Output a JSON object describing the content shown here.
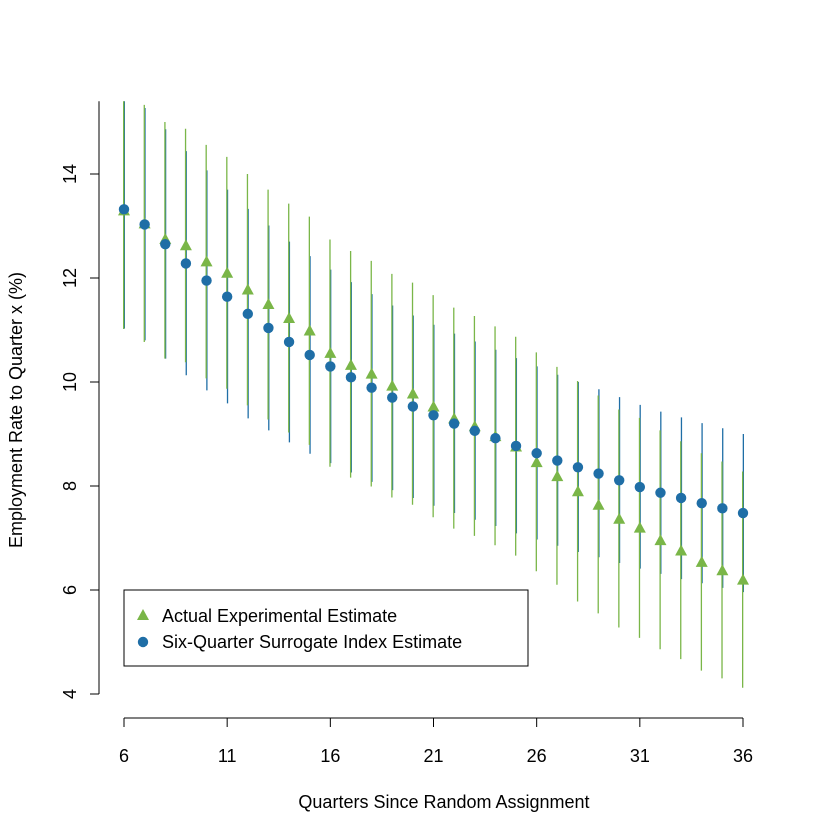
{
  "chart_data": {
    "type": "scatter",
    "title": "",
    "xlabel": "Quarters Since Random Assignment",
    "ylabel": "Employment Rate to Quarter x (%)",
    "xlim": [
      6,
      36
    ],
    "ylim": [
      4,
      15.4
    ],
    "x_ticks": [
      6,
      11,
      16,
      21,
      26,
      31,
      36
    ],
    "y_ticks": [
      4,
      6,
      8,
      10,
      12,
      14
    ],
    "grid": false,
    "legend_position": "bottom-left",
    "x": [
      6,
      7,
      8,
      9,
      10,
      11,
      12,
      13,
      14,
      15,
      16,
      17,
      18,
      19,
      20,
      21,
      22,
      23,
      24,
      25,
      26,
      27,
      28,
      29,
      30,
      31,
      32,
      33,
      34,
      35,
      36
    ],
    "series": [
      {
        "name": "Actual Experimental Estimate",
        "marker": "triangle",
        "color": "#7ab648",
        "values": [
          13.3,
          13.05,
          12.75,
          12.63,
          12.32,
          12.1,
          11.78,
          11.5,
          11.23,
          10.99,
          10.56,
          10.33,
          10.16,
          9.93,
          9.78,
          9.53,
          9.3,
          9.15,
          8.96,
          8.76,
          8.46,
          8.19,
          7.9,
          7.64,
          7.37,
          7.2,
          6.96,
          6.76,
          6.54,
          6.38,
          6.2
        ],
        "lower": [
          11.02,
          10.77,
          10.45,
          10.38,
          10.07,
          9.87,
          9.55,
          9.28,
          9.03,
          8.79,
          8.37,
          8.16,
          7.99,
          7.78,
          7.64,
          7.4,
          7.18,
          7.04,
          6.86,
          6.66,
          6.36,
          6.1,
          5.78,
          5.55,
          5.28,
          5.08,
          4.86,
          4.67,
          4.45,
          4.3,
          4.12
        ],
        "upper": [
          15.4,
          15.33,
          15.0,
          14.87,
          14.56,
          14.33,
          14.0,
          13.7,
          13.43,
          13.18,
          12.74,
          12.52,
          12.33,
          12.08,
          11.91,
          11.67,
          11.43,
          11.27,
          11.07,
          10.87,
          10.57,
          10.29,
          10.02,
          9.74,
          9.47,
          9.31,
          9.07,
          8.86,
          8.63,
          8.47,
          8.28
        ]
      },
      {
        "name": "Six-Quarter Surrogate Index Estimate",
        "marker": "circle",
        "color": "#1f6ea6",
        "values": [
          13.32,
          13.03,
          12.65,
          12.28,
          11.95,
          11.64,
          11.31,
          11.04,
          10.77,
          10.52,
          10.3,
          10.09,
          9.89,
          9.7,
          9.53,
          9.36,
          9.2,
          9.06,
          8.92,
          8.77,
          8.63,
          8.49,
          8.36,
          8.24,
          8.11,
          7.98,
          7.87,
          7.77,
          7.67,
          7.57,
          7.48
        ],
        "lower": [
          11.03,
          10.8,
          10.45,
          10.13,
          9.84,
          9.59,
          9.3,
          9.07,
          8.84,
          8.62,
          8.44,
          8.26,
          8.08,
          7.92,
          7.77,
          7.62,
          7.48,
          7.35,
          7.23,
          7.09,
          6.97,
          6.85,
          6.73,
          6.63,
          6.52,
          6.41,
          6.31,
          6.21,
          6.13,
          6.04,
          5.96
        ],
        "upper": [
          15.4,
          15.27,
          14.86,
          14.44,
          14.07,
          13.7,
          13.33,
          13.01,
          12.7,
          12.42,
          12.16,
          11.92,
          11.69,
          11.47,
          11.28,
          11.1,
          10.93,
          10.78,
          10.62,
          10.46,
          10.3,
          10.14,
          10.0,
          9.86,
          9.71,
          9.56,
          9.43,
          9.32,
          9.21,
          9.11,
          9.0
        ]
      }
    ]
  }
}
